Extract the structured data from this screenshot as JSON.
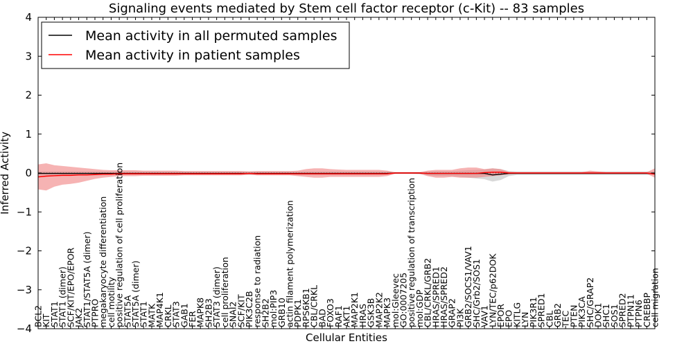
{
  "chart_data": {
    "type": "line",
    "title": "Signaling events mediated by Stem cell factor receptor (c-Kit) -- 83 samples",
    "xlabel": "Cellular Entities",
    "ylabel": "Inferred Activity",
    "ylim": [
      -4,
      4
    ],
    "yticks": [
      -4,
      -3,
      -2,
      -1,
      0,
      1,
      2,
      3,
      4
    ],
    "ytick_labels": [
      "−4",
      "−3",
      "−2",
      "−1",
      "0",
      "1",
      "2",
      "3",
      "4"
    ],
    "grid": false,
    "reference_line": 0,
    "legend_position": "top-left",
    "categories": [
      "BCL2",
      "KIT",
      "STAT1",
      "STAT1 (dimer)",
      "SCF/KIT/EPO/EPOR",
      "JAK2",
      "STAT1/STAT5A (dimer)",
      "PTPRO",
      "megakaryocyte differentiation",
      "cell motility",
      "positive regulation of cell proliferation",
      "STAT5A",
      "STAT5A (dimer)",
      "STAT1",
      "MATK",
      "MAP4K1",
      "CRKL",
      "STAT3",
      "GAB1",
      "FER",
      "MAPK8",
      "SH2B3",
      "STAT3 (dimer)",
      "cell proliferation",
      "SNAI2",
      "SCF/KIT",
      "PIK3C2B",
      "response to radiation",
      "SH2B2",
      "mol:PIP3",
      "GRB10",
      "actin filament polymerization",
      "PDPK1",
      "RPS6KB1",
      "CBL/CRKL",
      "BAD",
      "FOXO3",
      "RAF1",
      "AKT1",
      "MAP2K1",
      "HRAS",
      "GSK3B",
      "MAP2K2",
      "MAPK3",
      "mol:Gleevec",
      "GO:0007205",
      "positive regulation of transcription",
      "mol:GDP",
      "CBL/CRKL/GRB2",
      "HRAS/SPRED1",
      "HRAS/SPRED2",
      "GRAP2",
      "PI3K",
      "GRB2/SOCS1/VAV1",
      "SHC/Grb2/SOS1",
      "VAV1",
      "LYN/TEC/p62DOK",
      "EPOR",
      "EPO",
      "KITLG",
      "LYN",
      "PIK3R1",
      "SPRED1",
      "CBL",
      "GRB2",
      "TEC",
      "PTEN",
      "PIK3CA",
      "SHC/GRAP2",
      "DOK1",
      "SHC1",
      "SOS1",
      "SPRED2",
      "PTPN11",
      "PTPN6",
      "CREBBP",
      "cell migration"
    ],
    "series": [
      {
        "name": "Mean activity in all permuted samples",
        "color": "#000000",
        "band_color": "#b8b8b8",
        "values": [
          -0.01,
          -0.01,
          -0.01,
          -0.01,
          -0.01,
          -0.01,
          -0.01,
          -0.01,
          -0.01,
          -0.01,
          -0.01,
          -0.01,
          -0.01,
          -0.01,
          -0.01,
          -0.01,
          -0.01,
          -0.01,
          -0.01,
          -0.01,
          -0.01,
          -0.01,
          -0.01,
          -0.01,
          -0.01,
          -0.01,
          -0.01,
          -0.01,
          -0.01,
          -0.01,
          -0.01,
          -0.01,
          -0.01,
          -0.01,
          -0.01,
          -0.01,
          -0.01,
          -0.01,
          -0.01,
          -0.01,
          -0.01,
          -0.01,
          -0.01,
          -0.01,
          0,
          0,
          0,
          0,
          -0.01,
          -0.01,
          -0.01,
          -0.01,
          -0.01,
          -0.01,
          -0.01,
          -0.01,
          -0.05,
          -0.03,
          -0.01,
          -0.01,
          -0.01,
          -0.01,
          -0.01,
          -0.01,
          -0.01,
          -0.01,
          -0.01,
          -0.01,
          -0.01,
          -0.01,
          -0.01,
          -0.01,
          -0.01,
          -0.01,
          -0.01,
          -0.01,
          -0.01
        ],
        "band_lower": [
          -0.06,
          -0.06,
          -0.06,
          -0.06,
          -0.06,
          -0.06,
          -0.06,
          -0.06,
          -0.06,
          -0.06,
          -0.05,
          -0.05,
          -0.05,
          -0.05,
          -0.05,
          -0.05,
          -0.05,
          -0.05,
          -0.05,
          -0.05,
          -0.05,
          -0.05,
          -0.05,
          -0.05,
          -0.05,
          -0.05,
          -0.05,
          -0.05,
          -0.05,
          -0.05,
          -0.05,
          -0.05,
          -0.06,
          -0.06,
          -0.06,
          -0.06,
          -0.06,
          -0.06,
          -0.06,
          -0.06,
          -0.06,
          -0.06,
          -0.06,
          -0.05,
          -0.02,
          -0.02,
          -0.02,
          -0.03,
          -0.06,
          -0.08,
          -0.08,
          -0.08,
          -0.1,
          -0.12,
          -0.14,
          -0.16,
          -0.22,
          -0.18,
          -0.08,
          -0.05,
          -0.05,
          -0.05,
          -0.05,
          -0.05,
          -0.05,
          -0.05,
          -0.05,
          -0.05,
          -0.05,
          -0.05,
          -0.05,
          -0.05,
          -0.05,
          -0.05,
          -0.05,
          -0.05,
          -0.05
        ],
        "band_upper": [
          0.04,
          0.04,
          0.04,
          0.04,
          0.04,
          0.04,
          0.04,
          0.04,
          0.04,
          0.04,
          0.04,
          0.04,
          0.04,
          0.04,
          0.04,
          0.04,
          0.04,
          0.04,
          0.04,
          0.04,
          0.04,
          0.04,
          0.04,
          0.04,
          0.04,
          0.04,
          0.04,
          0.04,
          0.04,
          0.04,
          0.04,
          0.04,
          0.04,
          0.04,
          0.04,
          0.04,
          0.04,
          0.04,
          0.04,
          0.04,
          0.04,
          0.04,
          0.04,
          0.04,
          0.02,
          0.02,
          0.02,
          0.02,
          0.04,
          0.05,
          0.05,
          0.05,
          0.06,
          0.07,
          0.08,
          0.09,
          0.12,
          0.1,
          0.05,
          0.04,
          0.04,
          0.04,
          0.04,
          0.04,
          0.04,
          0.04,
          0.04,
          0.04,
          0.04,
          0.04,
          0.04,
          0.04,
          0.04,
          0.04,
          0.04,
          0.04,
          0.04
        ]
      },
      {
        "name": "Mean activity in patient samples",
        "color": "#ff0000",
        "band_color": "#f08080",
        "values": [
          -0.1,
          -0.08,
          -0.07,
          -0.06,
          -0.06,
          -0.05,
          -0.05,
          -0.04,
          -0.03,
          -0.03,
          -0.02,
          -0.02,
          -0.02,
          -0.02,
          -0.02,
          -0.02,
          -0.02,
          -0.02,
          -0.02,
          -0.02,
          -0.02,
          -0.02,
          -0.02,
          -0.02,
          -0.02,
          -0.02,
          -0.01,
          -0.02,
          -0.02,
          -0.02,
          -0.02,
          -0.02,
          -0.02,
          -0.02,
          -0.02,
          -0.02,
          -0.02,
          -0.02,
          -0.02,
          -0.02,
          -0.02,
          -0.02,
          -0.02,
          -0.02,
          0,
          0,
          0,
          0,
          -0.01,
          -0.01,
          -0.01,
          -0.01,
          -0.01,
          -0.01,
          -0.01,
          0.01,
          0.02,
          0.02,
          0,
          0,
          0,
          0,
          0,
          0,
          0,
          0,
          0,
          0,
          0,
          0,
          0,
          0,
          0,
          0,
          0,
          0,
          -0.03
        ],
        "band_lower": [
          -0.42,
          -0.45,
          -0.35,
          -0.3,
          -0.28,
          -0.25,
          -0.2,
          -0.15,
          -0.12,
          -0.1,
          -0.08,
          -0.08,
          -0.08,
          -0.07,
          -0.07,
          -0.07,
          -0.07,
          -0.07,
          -0.06,
          -0.06,
          -0.06,
          -0.06,
          -0.06,
          -0.06,
          -0.06,
          -0.06,
          -0.04,
          -0.06,
          -0.06,
          -0.06,
          -0.06,
          -0.06,
          -0.08,
          -0.1,
          -0.12,
          -0.12,
          -0.1,
          -0.1,
          -0.1,
          -0.1,
          -0.1,
          -0.1,
          -0.1,
          -0.08,
          -0.02,
          -0.02,
          -0.02,
          -0.02,
          -0.08,
          -0.12,
          -0.12,
          -0.1,
          -0.12,
          -0.12,
          -0.12,
          -0.1,
          -0.08,
          -0.06,
          -0.03,
          -0.02,
          -0.02,
          -0.02,
          -0.02,
          -0.02,
          -0.02,
          -0.02,
          -0.02,
          -0.02,
          -0.02,
          -0.02,
          -0.02,
          -0.02,
          -0.02,
          -0.02,
          -0.02,
          -0.02,
          -0.12
        ],
        "band_upper": [
          0.22,
          0.25,
          0.2,
          0.18,
          0.16,
          0.14,
          0.12,
          0.1,
          0.08,
          0.07,
          0.07,
          0.07,
          0.07,
          0.06,
          0.06,
          0.06,
          0.06,
          0.06,
          0.05,
          0.05,
          0.05,
          0.05,
          0.05,
          0.05,
          0.05,
          0.05,
          0.04,
          0.05,
          0.05,
          0.05,
          0.05,
          0.05,
          0.06,
          0.1,
          0.12,
          0.12,
          0.1,
          0.09,
          0.08,
          0.08,
          0.08,
          0.08,
          0.08,
          0.06,
          0.02,
          0.02,
          0.02,
          0.02,
          0.06,
          0.08,
          0.08,
          0.08,
          0.12,
          0.14,
          0.14,
          0.1,
          0.12,
          0.1,
          0.03,
          0.02,
          0.02,
          0.02,
          0.02,
          0.02,
          0.02,
          0.02,
          0.02,
          0.02,
          0.06,
          0.04,
          0.02,
          0.02,
          0.02,
          0.02,
          0.02,
          0.02,
          0.12
        ]
      }
    ]
  }
}
